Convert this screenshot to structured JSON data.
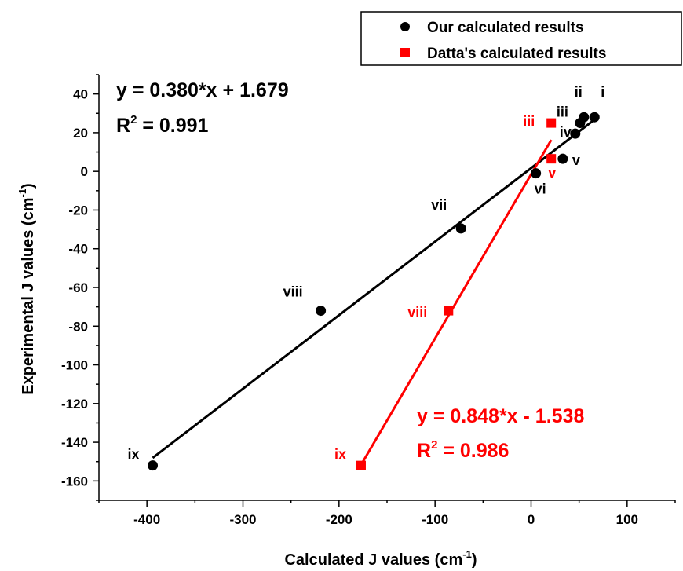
{
  "chart_data": {
    "type": "scatter",
    "xlabel": "Calculated J values (cm",
    "xlabel_sup": "-1",
    "xlabel_end": ")",
    "ylabel": "Experimental J values (cm",
    "ylabel_sup": "-1",
    "ylabel_end": ")",
    "xlim": [
      -450,
      150
    ],
    "ylim": [
      -170,
      50
    ],
    "xticks": [
      -400,
      -300,
      -200,
      -100,
      0,
      100
    ],
    "yticks": [
      40,
      20,
      0,
      -20,
      -40,
      -60,
      -80,
      -100,
      -120,
      -140,
      -160
    ],
    "grid": false,
    "legend_position": "top-right",
    "series": [
      {
        "name": "Our calculated results",
        "color": "#000000",
        "marker": "circle",
        "points": [
          {
            "label": "i",
            "x": 66,
            "y": 28
          },
          {
            "label": "ii",
            "x": 55,
            "y": 28
          },
          {
            "label": "iii",
            "x": 51,
            "y": 25
          },
          {
            "label": "iv",
            "x": 46,
            "y": 19.5
          },
          {
            "label": "v",
            "x": 33,
            "y": 6.5
          },
          {
            "label": "vi",
            "x": 5,
            "y": -1
          },
          {
            "label": "vii",
            "x": -73,
            "y": -29.5
          },
          {
            "label": "viii",
            "x": -219,
            "y": -72
          },
          {
            "label": "ix",
            "x": -394,
            "y": -152
          }
        ],
        "fit": {
          "equation": "y = 0.380*x + 1.679",
          "r2_prefix": "R",
          "r2_sup": "2",
          "r2_value": " = 0.991",
          "slope": 0.38,
          "intercept": 1.679,
          "x_range": [
            -394,
            66
          ]
        }
      },
      {
        "name": "Datta's calculated results",
        "color": "#ff0000",
        "marker": "square",
        "points": [
          {
            "label": "iii",
            "x": 21,
            "y": 25
          },
          {
            "label": "v",
            "x": 21,
            "y": 6.5
          },
          {
            "label": "viii",
            "x": -86,
            "y": -72
          },
          {
            "label": "ix",
            "x": -177,
            "y": -152
          }
        ],
        "fit": {
          "equation": "y = 0.848*x - 1.538",
          "r2_prefix": "R",
          "r2_sup": "2",
          "r2_value": " = 0.986",
          "slope": 0.848,
          "intercept": -1.538,
          "x_range": [
            -177,
            21
          ]
        }
      }
    ]
  }
}
